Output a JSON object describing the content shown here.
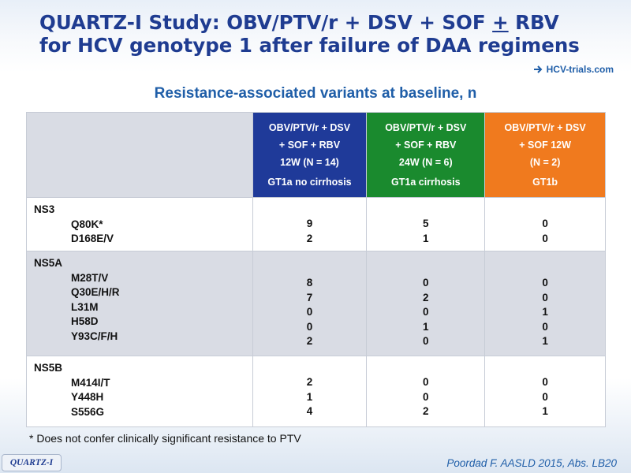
{
  "slide": {
    "title_line1_a": "QUARTZ-I Study: OBV/PTV/r + DSV + SOF ",
    "title_line1_plus": "+",
    "title_line1_b": " RBV",
    "title_line2": "for HCV genotype 1 after failure of DAA regimens",
    "logo_text": "HCV-trials.com",
    "subtitle": "Resistance-associated variants at baseline, n",
    "footnote": "* Does not confer clinically significant resistance to PTV",
    "tag": "QUARTZ-I",
    "citation": "Poordad F. AASLD 2015, Abs. LB20"
  },
  "table": {
    "columns": [
      {
        "lines": [
          "OBV/PTV/r + DSV",
          "+ SOF + RBV",
          "12W (N = 14)"
        ],
        "gt": "GT1a no cirrhosis",
        "color": "#1f3a99"
      },
      {
        "lines": [
          "OBV/PTV/r + DSV",
          "+ SOF + RBV",
          "24W (N = 6)"
        ],
        "gt": "GT1a cirrhosis",
        "color": "#1a8a2e"
      },
      {
        "lines": [
          "OBV/PTV/r  + DSV",
          "+ SOF 12W",
          "(N = 2)"
        ],
        "gt": "GT1b",
        "color": "#f07a1e"
      }
    ],
    "groups": [
      {
        "name": "NS3",
        "variants": [
          "Q80K*",
          "D168E/V"
        ],
        "values": [
          [
            "9",
            "2"
          ],
          [
            "5",
            "1"
          ],
          [
            "0",
            "0"
          ]
        ]
      },
      {
        "name": "NS5A",
        "variants": [
          "M28T/V",
          "Q30E/H/R",
          "L31M",
          "H58D",
          "Y93C/F/H"
        ],
        "values": [
          [
            "8",
            "7",
            "0",
            "0",
            "2"
          ],
          [
            "0",
            "2",
            "0",
            "1",
            "0"
          ],
          [
            "0",
            "0",
            "1",
            "0",
            "1"
          ]
        ]
      },
      {
        "name": "NS5B",
        "variants": [
          "M414I/T",
          "Y448H",
          "S556G"
        ],
        "values": [
          [
            "2",
            "1",
            "4"
          ],
          [
            "0",
            "0",
            "2"
          ],
          [
            "0",
            "0",
            "1"
          ]
        ]
      }
    ]
  }
}
